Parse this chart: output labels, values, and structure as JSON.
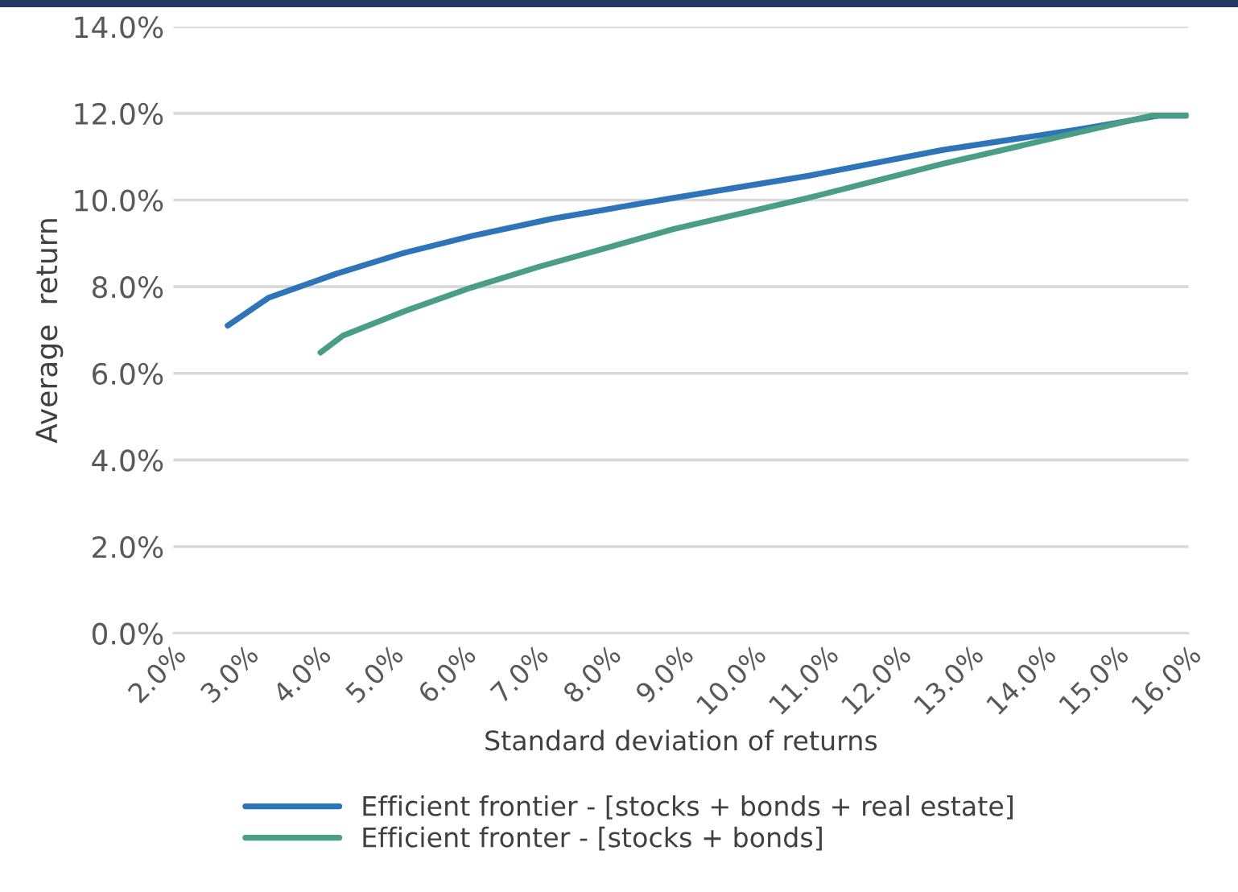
{
  "chart_data": {
    "type": "line",
    "xlabel": "Standard deviation of returns",
    "ylabel": "Average  return",
    "series": [
      {
        "name": "Efficient frontier - [stocks + bonds + real estate]",
        "color": "#2e74b8",
        "x": [
          2.75,
          3.32,
          4.25,
          5.18,
          6.11,
          7.23,
          8.9,
          10.76,
          12.62,
          14.48,
          15.6,
          15.97
        ],
        "values": [
          7.1,
          7.75,
          8.3,
          8.78,
          9.17,
          9.57,
          10.05,
          10.56,
          11.16,
          11.63,
          11.95,
          11.95
        ]
      },
      {
        "name": "Efficient fronter - [stocks + bonds]",
        "color": "#4a9e86",
        "x": [
          4.03,
          4.34,
          5.18,
          6.11,
          7.04,
          8.9,
          10.76,
          12.62,
          14.48,
          15.5,
          15.97
        ],
        "values": [
          6.48,
          6.87,
          7.43,
          7.98,
          8.46,
          9.33,
          10.05,
          10.84,
          11.56,
          11.95,
          11.95
        ]
      }
    ],
    "xlim": [
      2,
      16
    ],
    "xticks": [
      {
        "value": 2,
        "label": "2.0%"
      },
      {
        "value": 3,
        "label": "3.0%"
      },
      {
        "value": 4,
        "label": "4.0%"
      },
      {
        "value": 5,
        "label": "5.0%"
      },
      {
        "value": 6,
        "label": "6.0%"
      },
      {
        "value": 7,
        "label": "7.0%"
      },
      {
        "value": 8,
        "label": "8.0%"
      },
      {
        "value": 9,
        "label": "9.0%"
      },
      {
        "value": 10,
        "label": "10.0%"
      },
      {
        "value": 11,
        "label": "11.0%"
      },
      {
        "value": 12,
        "label": "12.0%"
      },
      {
        "value": 13,
        "label": "13.0%"
      },
      {
        "value": 14,
        "label": "14.0%"
      },
      {
        "value": 15,
        "label": "15.0%"
      },
      {
        "value": 16,
        "label": "16.0%"
      }
    ],
    "ylim": [
      0,
      14
    ],
    "yticks": [
      {
        "value": 0,
        "label": "0.0%"
      },
      {
        "value": 2,
        "label": "2.0%"
      },
      {
        "value": 4,
        "label": "4.0%"
      },
      {
        "value": 6,
        "label": "6.0%"
      },
      {
        "value": 8,
        "label": "8.0%"
      },
      {
        "value": 10,
        "label": "10.0%"
      },
      {
        "value": 12,
        "label": "12.0%"
      },
      {
        "value": 14,
        "label": "14.0%"
      }
    ],
    "grid": "y",
    "legend": "bottom",
    "marker": "none",
    "line_style": "solid"
  }
}
